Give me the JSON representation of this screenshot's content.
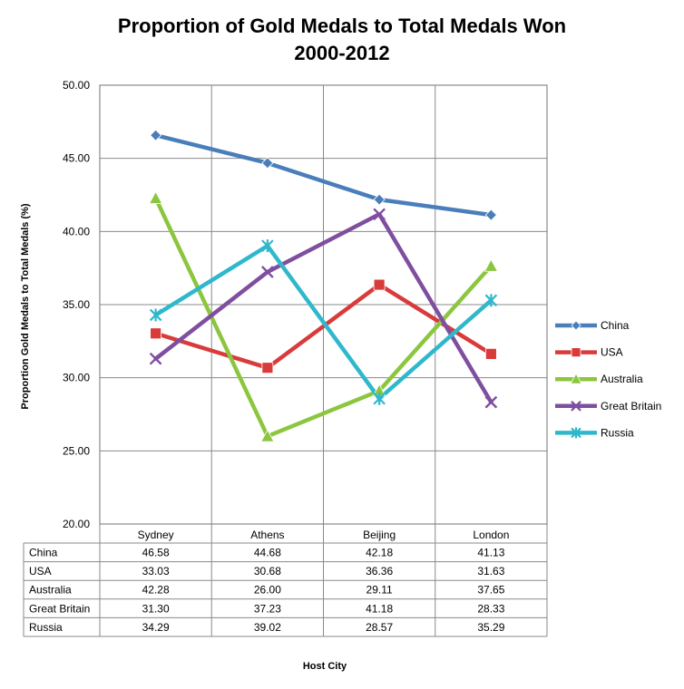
{
  "chart_data": {
    "type": "line",
    "title": [
      "Proportion of Gold Medals to Total Medals Won",
      "2000-2012"
    ],
    "xlabel": "Host City",
    "ylabel": "Proportion Gold Medals to Total Medals (%)",
    "ylim": [
      20,
      50
    ],
    "yticks": [
      "20.00",
      "25.00",
      "30.00",
      "35.00",
      "40.00",
      "45.00",
      "50.00"
    ],
    "categories": [
      "Sydney",
      "Athens",
      "Beijing",
      "London"
    ],
    "grid": true,
    "legend": "right",
    "series": [
      {
        "name": "China",
        "values": [
          46.58,
          44.68,
          42.18,
          41.13
        ],
        "display": [
          "46.58",
          "44.68",
          "42.18",
          "41.13"
        ],
        "color": "#4a7ebb",
        "marker": "diamond"
      },
      {
        "name": "USA",
        "values": [
          33.03,
          30.68,
          36.36,
          31.63
        ],
        "display": [
          "33.03",
          "30.68",
          "36.36",
          "31.63"
        ],
        "color": "#d93b3b",
        "marker": "square"
      },
      {
        "name": "Australia",
        "values": [
          42.28,
          26.0,
          29.11,
          37.65
        ],
        "display": [
          "42.28",
          "26.00",
          "29.11",
          "37.65"
        ],
        "color": "#8cc63f",
        "marker": "triangle"
      },
      {
        "name": "Great Britain",
        "values": [
          31.3,
          37.23,
          41.18,
          28.33
        ],
        "display": [
          "31.30",
          "37.23",
          "41.18",
          "28.33"
        ],
        "color": "#7f4f9f",
        "marker": "x"
      },
      {
        "name": "Russia",
        "values": [
          34.29,
          39.02,
          28.57,
          35.29
        ],
        "display": [
          "34.29",
          "39.02",
          "28.57",
          "35.29"
        ],
        "color": "#2fb8cc",
        "marker": "star"
      }
    ]
  }
}
